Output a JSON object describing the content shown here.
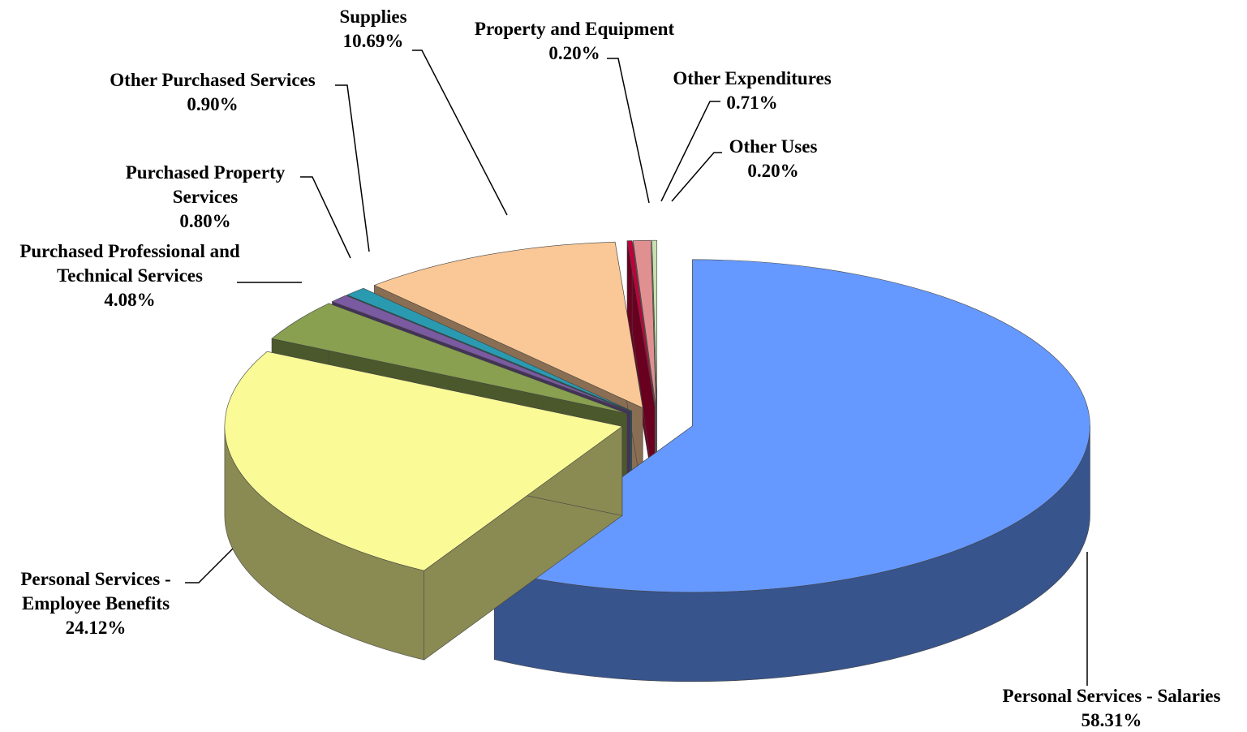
{
  "chart_data": {
    "type": "pie3d",
    "categories": [
      "Personal Services - Salaries",
      "Personal Services - Employee Benefits",
      "Purchased Professional and Technical Services",
      "Purchased Property Services",
      "Other Purchased Services",
      "Supplies",
      "Property and Equipment",
      "Other Expenditures",
      "Other Uses"
    ],
    "values": [
      58.31,
      24.12,
      4.08,
      0.8,
      0.9,
      10.69,
      0.2,
      0.71,
      0.2
    ],
    "value_labels": [
      "58.31%",
      "24.12%",
      "4.08%",
      "0.80%",
      "0.90%",
      "10.69%",
      "0.20%",
      "0.71%",
      "0.20%"
    ],
    "colors": [
      "#6699ff",
      "#fafa96",
      "#88a050",
      "#7a5aa0",
      "#2a9ab0",
      "#fac896",
      "#c0003a",
      "#e09090",
      "#c8e0b0"
    ]
  }
}
